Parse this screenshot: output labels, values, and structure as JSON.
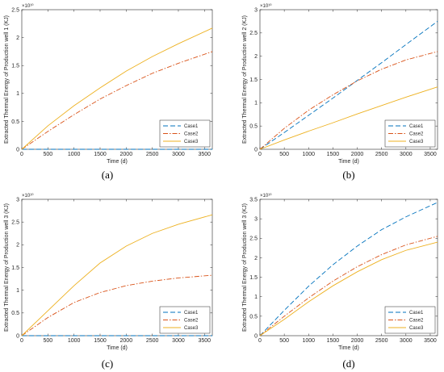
{
  "chart_data": [
    {
      "type": "line",
      "caption": "(a)",
      "xlabel": "Time (d)",
      "ylabel": "Extracted Thermal Energy of Production well 1 (KJ)",
      "exponent": "×10¹⁰",
      "xlim": [
        0,
        3650
      ],
      "ylim": [
        0,
        2.5
      ],
      "xticks": [
        0,
        500,
        1000,
        1500,
        2000,
        2500,
        3000,
        3500
      ],
      "yticks": [
        0,
        0.5,
        1,
        1.5,
        2,
        2.5
      ],
      "legend": "bottom-right",
      "series": [
        {
          "name": "Case1",
          "color": "#0072BD",
          "dash": "dash",
          "x": [
            0,
            500,
            1000,
            1500,
            2000,
            2500,
            3000,
            3650
          ],
          "y": [
            0,
            0,
            0,
            0,
            0,
            0,
            0,
            0
          ]
        },
        {
          "name": "Case2",
          "color": "#D95319",
          "dash": "dashdot",
          "x": [
            0,
            500,
            1000,
            1500,
            2000,
            2500,
            3000,
            3650
          ],
          "y": [
            0,
            0.32,
            0.62,
            0.9,
            1.14,
            1.36,
            1.54,
            1.75
          ]
        },
        {
          "name": "Case3",
          "color": "#EDB120",
          "dash": "solid",
          "x": [
            0,
            500,
            1000,
            1500,
            2000,
            2500,
            3000,
            3650
          ],
          "y": [
            0,
            0.42,
            0.78,
            1.1,
            1.4,
            1.66,
            1.89,
            2.17
          ]
        }
      ]
    },
    {
      "type": "line",
      "caption": "(b)",
      "xlabel": "Time (d)",
      "ylabel": "Extracted Thermal Energy of Production well 2 (KJ)",
      "exponent": "×10¹⁰",
      "xlim": [
        0,
        3650
      ],
      "ylim": [
        0,
        3
      ],
      "xticks": [
        0,
        500,
        1000,
        1500,
        2000,
        2500,
        3000,
        3500
      ],
      "yticks": [
        0,
        0.5,
        1,
        1.5,
        2,
        2.5,
        3
      ],
      "legend": "bottom-right",
      "series": [
        {
          "name": "Case1",
          "color": "#0072BD",
          "dash": "dash",
          "x": [
            0,
            500,
            1000,
            1500,
            2000,
            2500,
            3000,
            3650
          ],
          "y": [
            0,
            0.36,
            0.73,
            1.1,
            1.48,
            1.86,
            2.25,
            2.75
          ]
        },
        {
          "name": "Case2",
          "color": "#D95319",
          "dash": "dashdot",
          "x": [
            0,
            500,
            1000,
            1500,
            2000,
            2500,
            3000,
            3650
          ],
          "y": [
            0,
            0.45,
            0.84,
            1.17,
            1.47,
            1.72,
            1.92,
            2.1
          ]
        },
        {
          "name": "Case3",
          "color": "#EDB120",
          "dash": "solid",
          "x": [
            0,
            500,
            1000,
            1500,
            2000,
            2500,
            3000,
            3650
          ],
          "y": [
            0,
            0.2,
            0.39,
            0.57,
            0.76,
            0.94,
            1.12,
            1.34
          ]
        }
      ]
    },
    {
      "type": "line",
      "caption": "(c)",
      "xlabel": "Time (d)",
      "ylabel": "Extracted Thermal Energy of Production well 3 (KJ)",
      "exponent": "×10¹⁰",
      "xlim": [
        0,
        3650
      ],
      "ylim": [
        0,
        3
      ],
      "xticks": [
        0,
        500,
        1000,
        1500,
        2000,
        2500,
        3000,
        3500
      ],
      "yticks": [
        0,
        0.5,
        1,
        1.5,
        2,
        2.5,
        3
      ],
      "legend": "bottom-right",
      "series": [
        {
          "name": "Case1",
          "color": "#0072BD",
          "dash": "dash",
          "x": [
            0,
            500,
            1000,
            1500,
            2000,
            2500,
            3000,
            3650
          ],
          "y": [
            0,
            0,
            0,
            0,
            0,
            0,
            0,
            0
          ]
        },
        {
          "name": "Case2",
          "color": "#D95319",
          "dash": "dashdot",
          "x": [
            0,
            500,
            1000,
            1500,
            2000,
            2500,
            3000,
            3650
          ],
          "y": [
            0,
            0.4,
            0.73,
            0.95,
            1.1,
            1.2,
            1.27,
            1.33
          ]
        },
        {
          "name": "Case3",
          "color": "#EDB120",
          "dash": "solid",
          "x": [
            0,
            500,
            1000,
            1500,
            2000,
            2500,
            3000,
            3650
          ],
          "y": [
            0,
            0.55,
            1.1,
            1.6,
            1.97,
            2.25,
            2.45,
            2.66
          ]
        }
      ]
    },
    {
      "type": "line",
      "caption": "(d)",
      "xlabel": "Time (d)",
      "ylabel": "Extracted Thermal Energy of Production well 3 (KJ)",
      "exponent": "×10¹⁰",
      "xlim": [
        0,
        3650
      ],
      "ylim": [
        0,
        3.5
      ],
      "xticks": [
        0,
        500,
        1000,
        1500,
        2000,
        2500,
        3000,
        3500
      ],
      "yticks": [
        0,
        0.5,
        1,
        1.5,
        2,
        2.5,
        3,
        3.5
      ],
      "legend": "bottom-right",
      "series": [
        {
          "name": "Case1",
          "color": "#0072BD",
          "dash": "dash",
          "x": [
            0,
            500,
            1000,
            1500,
            2000,
            2500,
            3000,
            3650
          ],
          "y": [
            0,
            0.65,
            1.27,
            1.82,
            2.3,
            2.72,
            3.05,
            3.42
          ]
        },
        {
          "name": "Case2",
          "color": "#D95319",
          "dash": "dashdot",
          "x": [
            0,
            500,
            1000,
            1500,
            2000,
            2500,
            3000,
            3650
          ],
          "y": [
            0,
            0.5,
            0.97,
            1.4,
            1.77,
            2.08,
            2.33,
            2.55
          ]
        },
        {
          "name": "Case3",
          "color": "#EDB120",
          "dash": "solid",
          "x": [
            0,
            500,
            1000,
            1500,
            2000,
            2500,
            3000,
            3650
          ],
          "y": [
            0,
            0.42,
            0.87,
            1.28,
            1.64,
            1.95,
            2.19,
            2.4
          ]
        }
      ]
    }
  ]
}
